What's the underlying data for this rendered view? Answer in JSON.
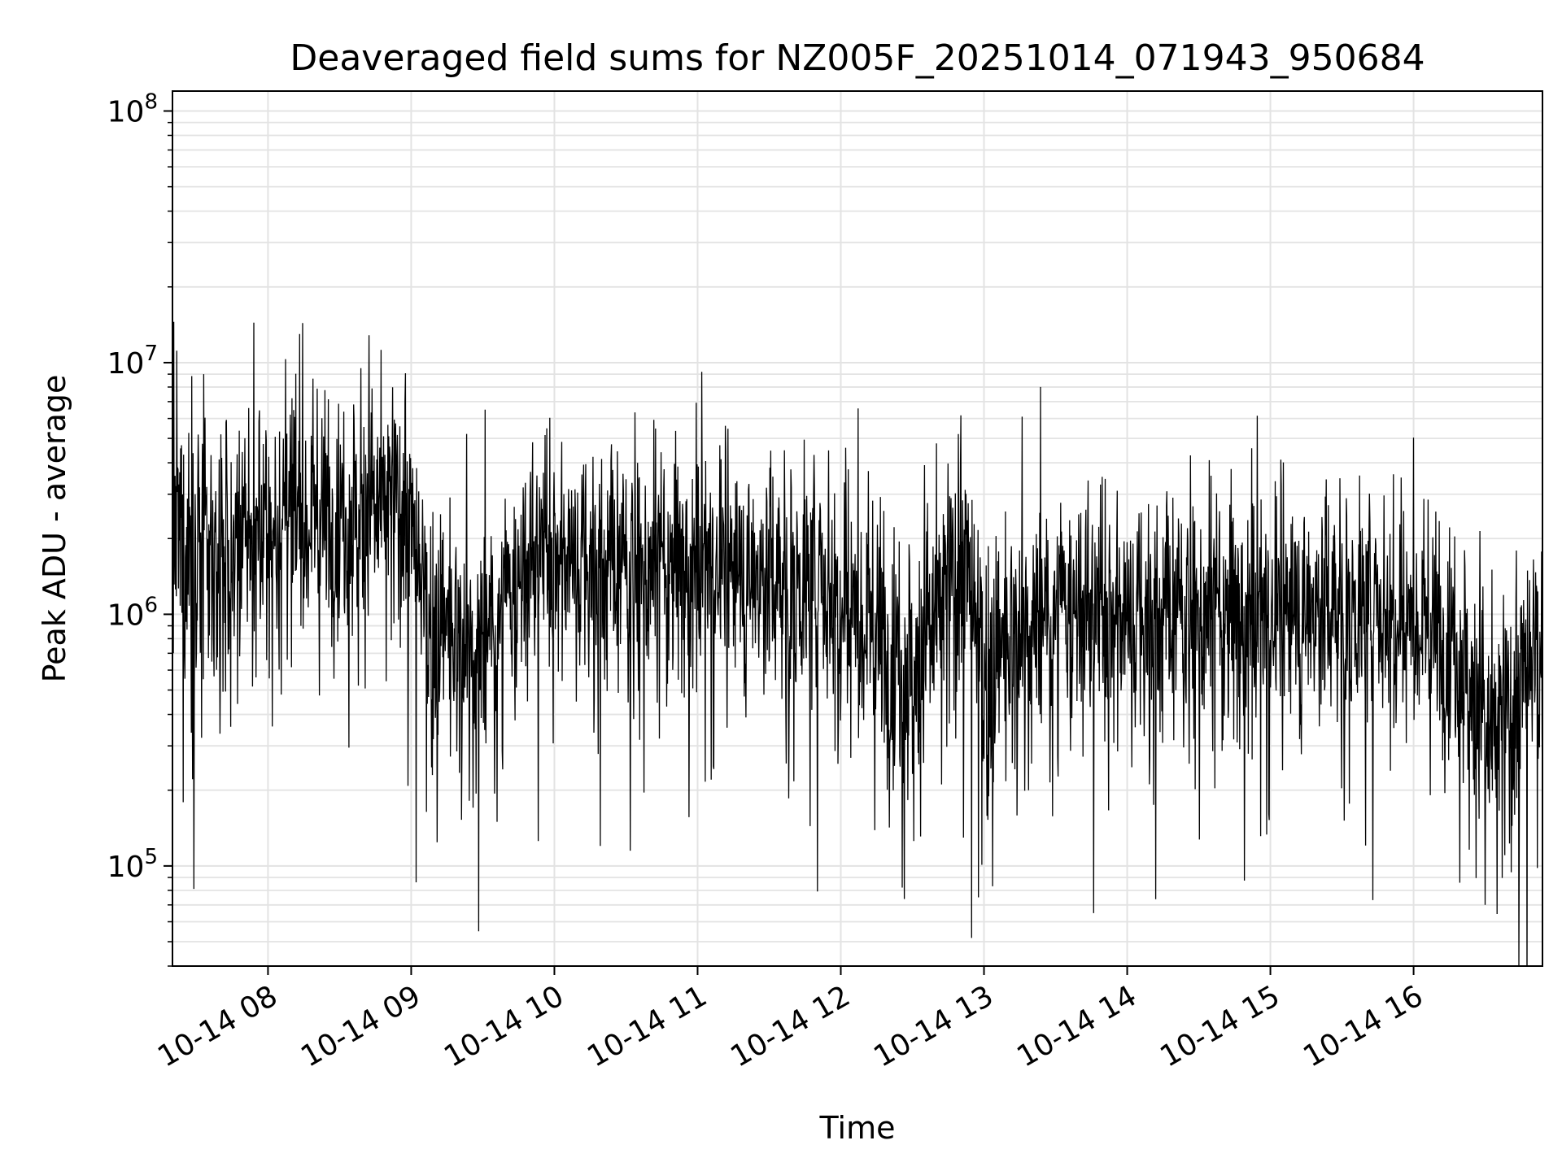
{
  "chart_data": {
    "type": "line",
    "title": "Deaveraged field sums for NZ005F_20251014_071943_950684",
    "xlabel": "Time",
    "ylabel": "Peak ADU - average",
    "yscale": "log",
    "ylim": [
      40000,
      120000000
    ],
    "xlim_hours": [
      7.333,
      16.9
    ],
    "grid": true,
    "line_color": "#000000",
    "grid_color": "#e3e3e3",
    "x_ticks": [
      {
        "hour": 8,
        "label": "10-14 08"
      },
      {
        "hour": 9,
        "label": "10-14 09"
      },
      {
        "hour": 10,
        "label": "10-14 10"
      },
      {
        "hour": 11,
        "label": "10-14 11"
      },
      {
        "hour": 12,
        "label": "10-14 12"
      },
      {
        "hour": 13,
        "label": "10-14 13"
      },
      {
        "hour": 14,
        "label": "10-14 14"
      },
      {
        "hour": 15,
        "label": "10-14 15"
      },
      {
        "hour": 16,
        "label": "10-14 16"
      }
    ],
    "y_ticks": [
      {
        "value": 100000,
        "base": "10",
        "exp": "5"
      },
      {
        "value": 1000000,
        "base": "10",
        "exp": "6"
      },
      {
        "value": 10000000,
        "base": "10",
        "exp": "7"
      },
      {
        "value": 100000000,
        "base": "10",
        "exp": "8"
      }
    ],
    "series": [
      {
        "name": "Peak ADU - average",
        "x_start_hour": 7.333,
        "x_end_hour": 16.9,
        "trend": [
          {
            "hour": 7.333,
            "median": 2000000,
            "spread": 0.55
          },
          {
            "hour": 7.7,
            "median": 1500000,
            "spread": 0.5
          },
          {
            "hour": 8.2,
            "median": 2600000,
            "spread": 0.45
          },
          {
            "hour": 8.6,
            "median": 2500000,
            "spread": 0.45
          },
          {
            "hour": 8.95,
            "median": 2800000,
            "spread": 0.45
          },
          {
            "hour": 9.1,
            "median": 1000000,
            "spread": 0.45
          },
          {
            "hour": 9.45,
            "median": 650000,
            "spread": 0.45
          },
          {
            "hour": 9.9,
            "median": 1800000,
            "spread": 0.4
          },
          {
            "hour": 10.5,
            "median": 1500000,
            "spread": 0.45
          },
          {
            "hour": 11.0,
            "median": 1600000,
            "spread": 0.4
          },
          {
            "hour": 11.5,
            "median": 1400000,
            "spread": 0.45
          },
          {
            "hour": 12.0,
            "median": 1300000,
            "spread": 0.5
          },
          {
            "hour": 12.5,
            "median": 600000,
            "spread": 0.5
          },
          {
            "hour": 12.85,
            "median": 1600000,
            "spread": 0.5
          },
          {
            "hour": 13.0,
            "median": 600000,
            "spread": 0.5
          },
          {
            "hour": 13.5,
            "median": 1000000,
            "spread": 0.45
          },
          {
            "hour": 14.0,
            "median": 1000000,
            "spread": 0.45
          },
          {
            "hour": 14.5,
            "median": 1000000,
            "spread": 0.45
          },
          {
            "hour": 15.0,
            "median": 1000000,
            "spread": 0.45
          },
          {
            "hour": 15.5,
            "median": 1100000,
            "spread": 0.45
          },
          {
            "hour": 16.0,
            "median": 1000000,
            "spread": 0.4
          },
          {
            "hour": 16.3,
            "median": 800000,
            "spread": 0.45
          },
          {
            "hour": 16.55,
            "median": 300000,
            "spread": 0.5
          },
          {
            "hour": 16.9,
            "median": 700000,
            "spread": 0.5
          }
        ],
        "notable_extremes": [
          {
            "hour": 8.22,
            "value": 13000000
          },
          {
            "hour": 8.65,
            "value": 9500000
          },
          {
            "hour": 7.55,
            "value": 9000000
          },
          {
            "hour": 9.47,
            "value": 55000
          },
          {
            "hour": 10.53,
            "value": 115000
          },
          {
            "hour": 12.43,
            "value": 82000
          },
          {
            "hour": 12.96,
            "value": 75000
          },
          {
            "hour": 16.5,
            "value": 70000
          },
          {
            "hour": 12.82,
            "value": 5200000
          },
          {
            "hour": 15.86,
            "value": 3600000
          }
        ]
      }
    ]
  }
}
